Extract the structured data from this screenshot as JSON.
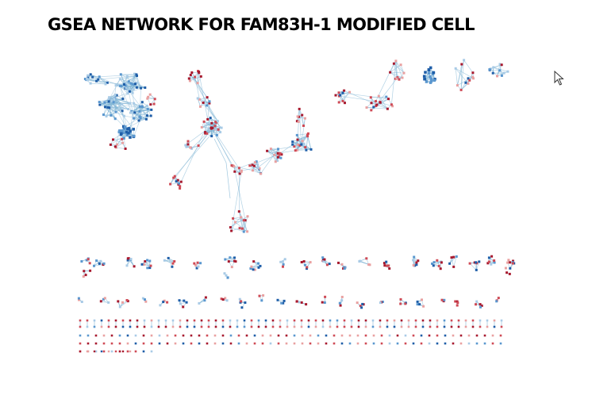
{
  "title": "GSEA NETWORK FOR FAM83H-1 MODIFIED CELL",
  "colors": {
    "edge": "#7fb4d4",
    "node_dark_blue": "#1f5ea8",
    "node_mid_blue": "#5a97cf",
    "node_light_blue": "#a9cbe6",
    "node_dark_red": "#a8192e",
    "node_mid_red": "#cf4a55",
    "node_light_red": "#e9a0a0"
  },
  "icons": {
    "cursor": "mouse-pointer-icon"
  }
}
